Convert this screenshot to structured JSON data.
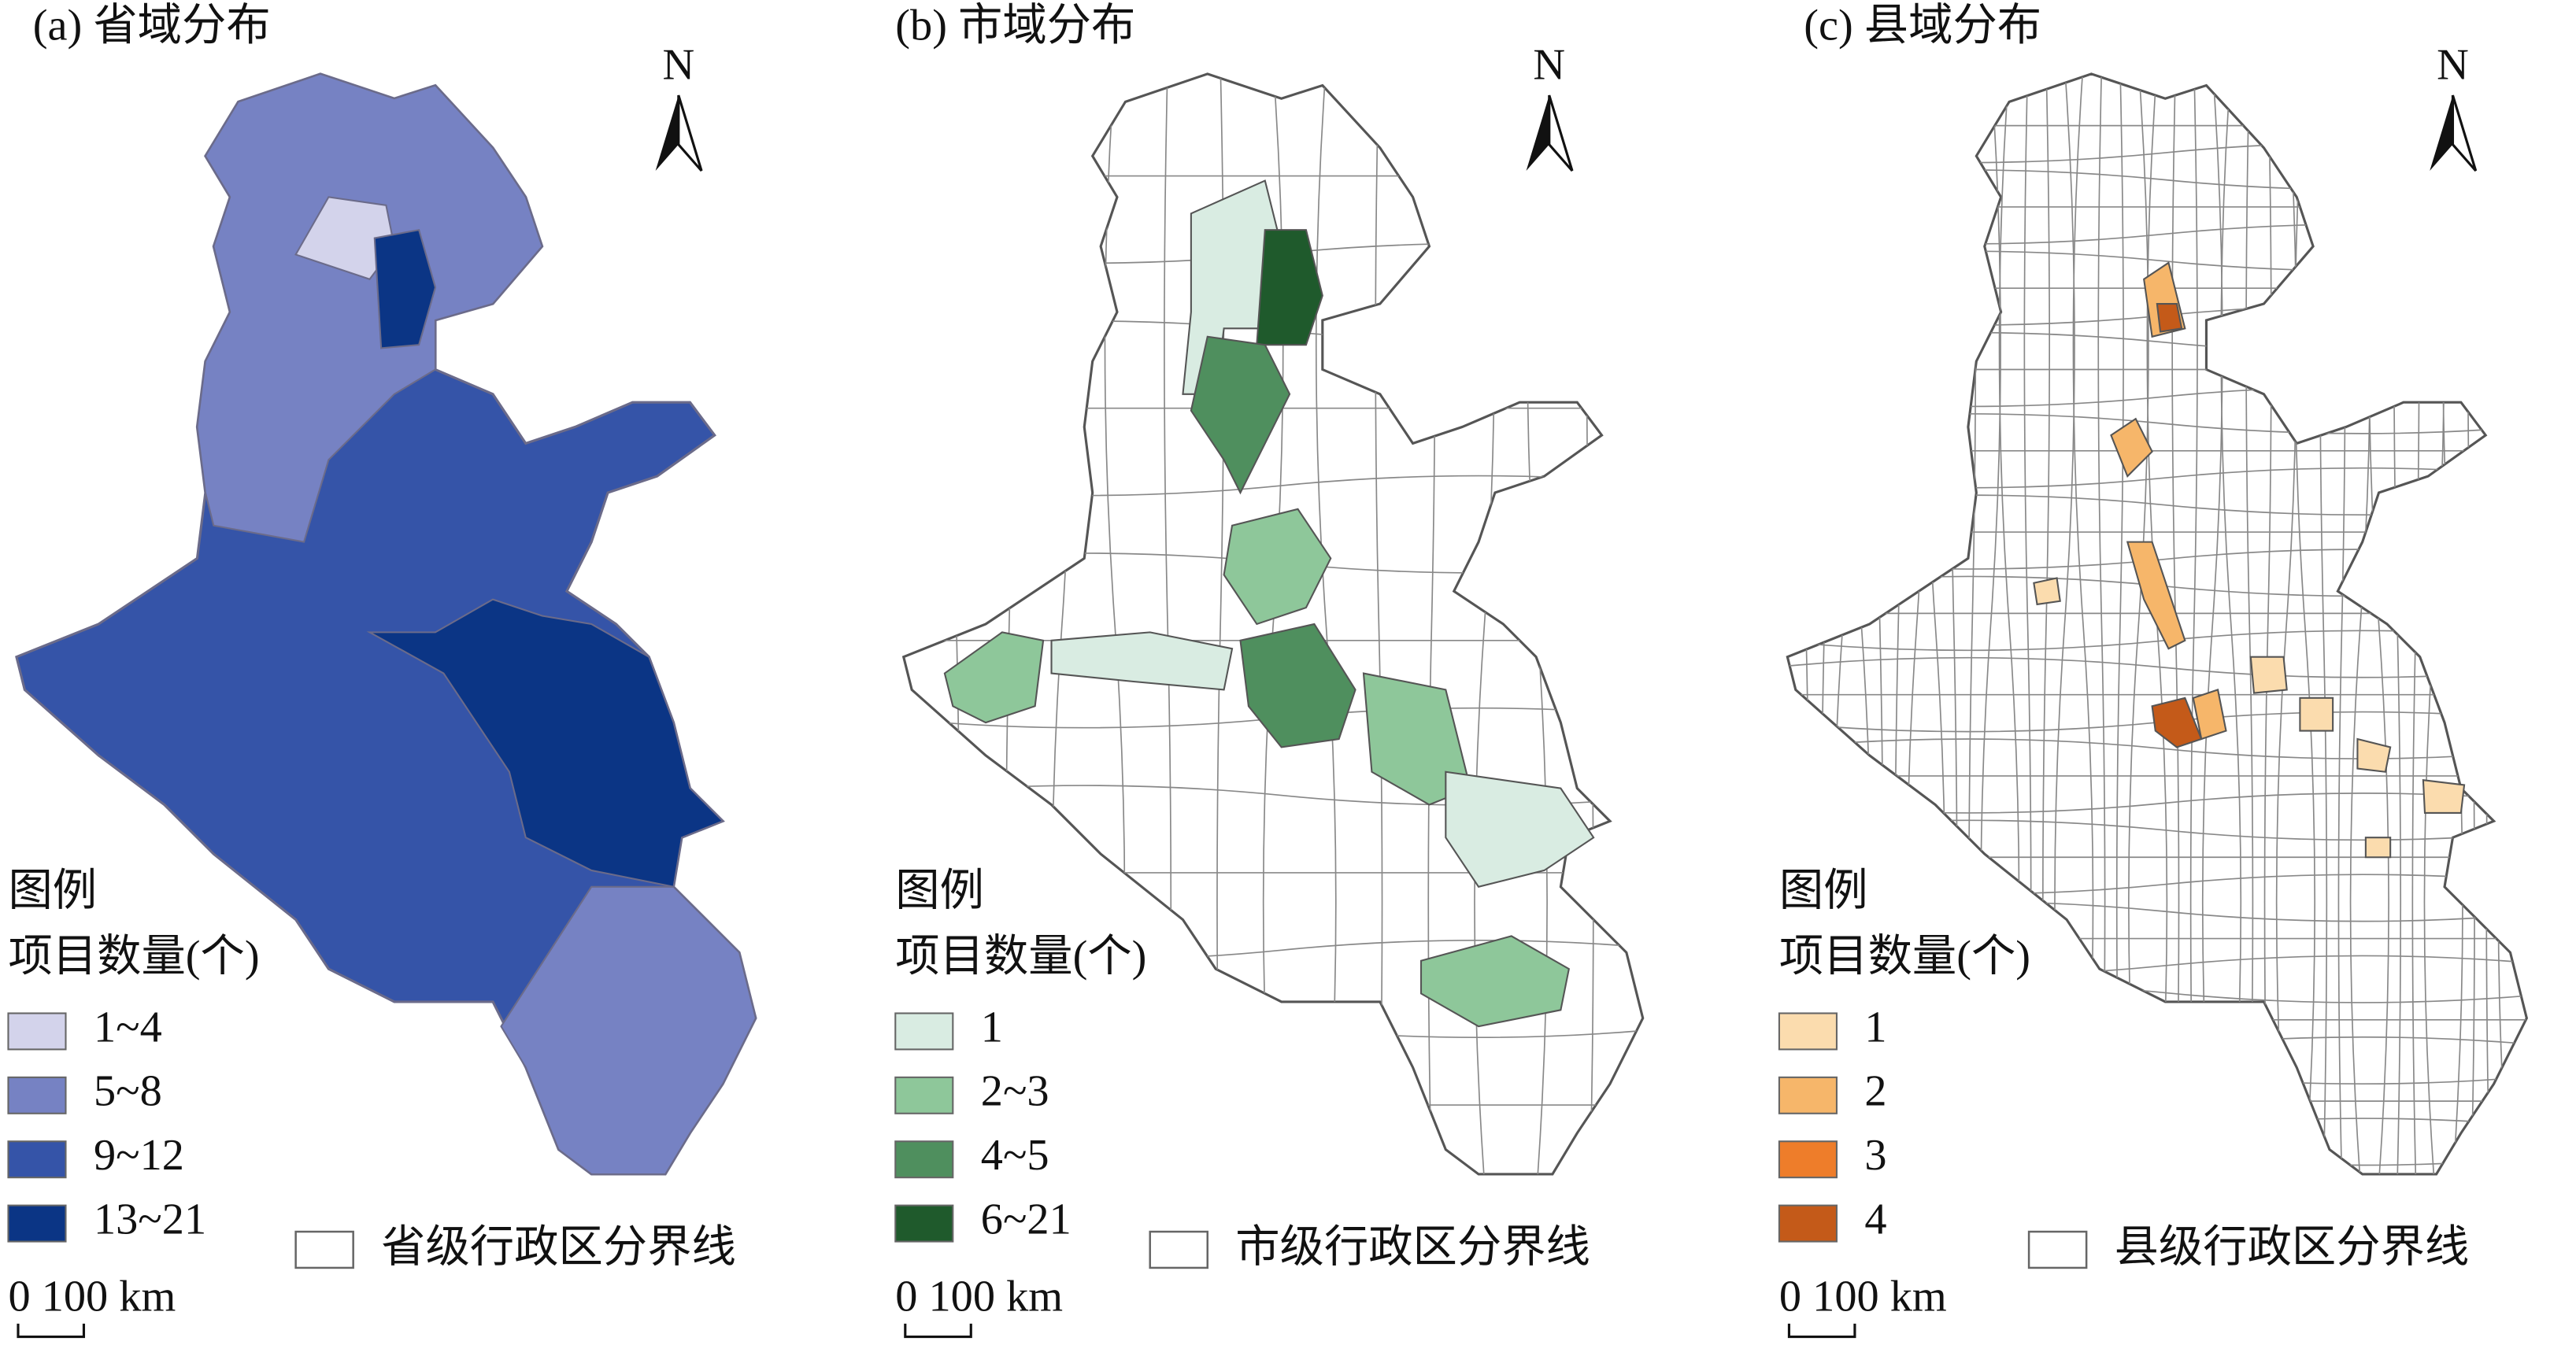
{
  "panels": [
    {
      "title": "(a) 省域分布",
      "north": "N",
      "legend": {
        "title": "图例",
        "subtitle": "项目数量(个)",
        "items": [
          {
            "label": "1~4",
            "color": "#d3d3eb"
          },
          {
            "label": "5~8",
            "color": "#7682c3"
          },
          {
            "label": "9~12",
            "color": "#3554a8"
          },
          {
            "label": "13~21",
            "color": "#0b3585"
          }
        ],
        "boundary": "省级行政区分界线"
      },
      "scale": "0 100 km"
    },
    {
      "title": "(b) 市域分布",
      "north": "N",
      "legend": {
        "title": "图例",
        "subtitle": "项目数量(个)",
        "items": [
          {
            "label": "1",
            "color": "#d9ece2"
          },
          {
            "label": "2~3",
            "color": "#8ec79a"
          },
          {
            "label": "4~5",
            "color": "#4f8f5e"
          },
          {
            "label": "6~21",
            "color": "#1f5a2c"
          }
        ],
        "boundary": "市级行政区分界线"
      },
      "scale": "0 100 km"
    },
    {
      "title": "(c) 县域分布",
      "north": "N",
      "legend": {
        "title": "图例",
        "subtitle": "项目数量(个)",
        "items": [
          {
            "label": "1",
            "color": "#fbdcae"
          },
          {
            "label": "2",
            "color": "#f6b66a"
          },
          {
            "label": "3",
            "color": "#ee7d2a"
          },
          {
            "label": "4",
            "color": "#c45a19"
          }
        ],
        "boundary": "县级行政区分界线"
      },
      "scale": "0 100 km"
    }
  ]
}
